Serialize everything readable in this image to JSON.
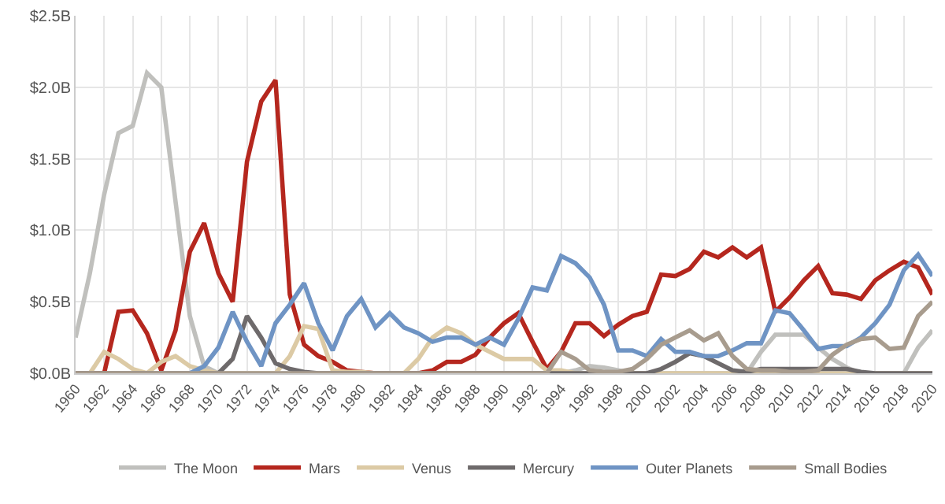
{
  "chart_data": {
    "type": "line",
    "x": [
      1960,
      1961,
      1962,
      1963,
      1964,
      1965,
      1966,
      1967,
      1968,
      1969,
      1970,
      1971,
      1972,
      1973,
      1974,
      1975,
      1976,
      1977,
      1978,
      1979,
      1980,
      1981,
      1982,
      1983,
      1984,
      1985,
      1986,
      1987,
      1988,
      1989,
      1990,
      1991,
      1992,
      1993,
      1994,
      1995,
      1996,
      1997,
      1998,
      1999,
      2000,
      2001,
      2002,
      2003,
      2004,
      2005,
      2006,
      2007,
      2008,
      2009,
      2010,
      2011,
      2012,
      2013,
      2014,
      2015,
      2016,
      2017,
      2018,
      2019,
      2020
    ],
    "series": [
      {
        "name": "The Moon",
        "color": "#c0c0bd",
        "values": [
          0.25,
          0.7,
          1.25,
          1.68,
          1.73,
          2.1,
          2.0,
          1.2,
          0.4,
          0.05,
          0,
          0,
          0,
          0,
          0,
          0,
          0,
          0,
          0,
          0,
          0,
          0,
          0,
          0,
          0,
          0,
          0,
          0,
          0,
          0,
          0,
          0,
          0,
          0,
          0,
          0.02,
          0.05,
          0.04,
          0.02,
          0,
          0,
          0,
          0,
          0,
          0,
          0,
          0,
          0,
          0.15,
          0.27,
          0.27,
          0.27,
          0.18,
          0.1,
          0.04,
          0,
          0,
          0,
          0,
          0.18,
          0.3
        ]
      },
      {
        "name": "Mars",
        "color": "#b5271e",
        "values": [
          0,
          0,
          0,
          0.43,
          0.44,
          0.28,
          0.02,
          0.3,
          0.85,
          1.05,
          0.7,
          0.5,
          1.48,
          1.9,
          2.05,
          0.55,
          0.2,
          0.12,
          0.08,
          0.02,
          0.01,
          0,
          0,
          0,
          0,
          0.02,
          0.08,
          0.08,
          0.13,
          0.25,
          0.35,
          0.42,
          0.22,
          0.03,
          0.15,
          0.35,
          0.35,
          0.26,
          0.34,
          0.4,
          0.43,
          0.69,
          0.68,
          0.73,
          0.85,
          0.81,
          0.88,
          0.81,
          0.88,
          0.43,
          0.53,
          0.65,
          0.75,
          0.56,
          0.55,
          0.52,
          0.65,
          0.72,
          0.78,
          0.74,
          0.55
        ]
      },
      {
        "name": "Venus",
        "color": "#dccaa5",
        "values": [
          0,
          0,
          0.15,
          0.1,
          0.03,
          0,
          0.08,
          0.12,
          0.05,
          0.02,
          0,
          0,
          0,
          0,
          0,
          0.12,
          0.33,
          0.31,
          0.02,
          0.01,
          0.01,
          0,
          0,
          0,
          0.1,
          0.25,
          0.32,
          0.28,
          0.2,
          0.15,
          0.1,
          0.1,
          0.1,
          0.02,
          0.02,
          0,
          0,
          0,
          0,
          0,
          0,
          0,
          0,
          0,
          0,
          0,
          0,
          0,
          0,
          0,
          0,
          0,
          0,
          0,
          0,
          0,
          0,
          0,
          0,
          0,
          0
        ]
      },
      {
        "name": "Mercury",
        "color": "#6e6a6b",
        "values": [
          0,
          0,
          0,
          0,
          0,
          0,
          0,
          0,
          0,
          0,
          0,
          0.1,
          0.4,
          0.25,
          0.07,
          0.03,
          0.01,
          0,
          0,
          0,
          0,
          0,
          0,
          0,
          0,
          0,
          0,
          0,
          0,
          0,
          0,
          0,
          0,
          0,
          0,
          0,
          0,
          0,
          0,
          0,
          0,
          0.03,
          0.08,
          0.14,
          0.12,
          0.07,
          0.02,
          0.01,
          0.03,
          0.03,
          0.03,
          0.03,
          0.03,
          0.03,
          0.03,
          0.01,
          0,
          0,
          0,
          0,
          0
        ]
      },
      {
        "name": "Outer Planets",
        "color": "#6f94c4",
        "values": [
          null,
          null,
          null,
          null,
          null,
          null,
          null,
          null,
          0,
          0.05,
          0.18,
          0.43,
          0.22,
          0.05,
          0.35,
          0.48,
          0.63,
          0.35,
          0.16,
          0.4,
          0.52,
          0.32,
          0.42,
          0.32,
          0.28,
          0.22,
          0.25,
          0.25,
          0.2,
          0.25,
          0.2,
          0.38,
          0.6,
          0.58,
          0.82,
          0.77,
          0.67,
          0.48,
          0.16,
          0.16,
          0.12,
          0.24,
          0.15,
          0.15,
          0.12,
          0.12,
          0.16,
          0.21,
          0.21,
          0.44,
          0.42,
          0.3,
          0.17,
          0.19,
          0.19,
          0.25,
          0.35,
          0.48,
          0.72,
          0.83,
          0.68
        ]
      },
      {
        "name": "Small Bodies",
        "color": "#a89c8e",
        "values": [
          0,
          0,
          0,
          0,
          0,
          0,
          0,
          0,
          0,
          0,
          0,
          0,
          0,
          0,
          0,
          0,
          0,
          0,
          0,
          0,
          0,
          0,
          0,
          0,
          0,
          0,
          0,
          0,
          0,
          0,
          0,
          0,
          0,
          0,
          0.15,
          0.1,
          0.02,
          0.01,
          0.01,
          0.03,
          0.1,
          0.2,
          0.25,
          0.3,
          0.23,
          0.28,
          0.12,
          0.03,
          0.02,
          0.02,
          0.01,
          0.01,
          0.02,
          0.13,
          0.2,
          0.24,
          0.25,
          0.17,
          0.18,
          0.4,
          0.5
        ]
      }
    ],
    "xlim": [
      1960,
      2020
    ],
    "xticks": [
      1960,
      1962,
      1964,
      1966,
      1968,
      1970,
      1972,
      1974,
      1976,
      1978,
      1980,
      1982,
      1984,
      1986,
      1988,
      1990,
      1992,
      1994,
      1996,
      1998,
      2000,
      2002,
      2004,
      2006,
      2008,
      2010,
      2012,
      2014,
      2016,
      2018,
      2020
    ],
    "ylim": [
      0,
      2.5
    ],
    "yticks": [
      {
        "value": 0,
        "label": "$0.0B"
      },
      {
        "value": 0.5,
        "label": "$0.5B"
      },
      {
        "value": 1,
        "label": "$1.0B"
      },
      {
        "value": 1.5,
        "label": "$1.5B"
      },
      {
        "value": 2,
        "label": "$2.0B"
      },
      {
        "value": 2.5,
        "label": "$2.5B"
      }
    ],
    "grid": true,
    "legend": "bottom",
    "marker": "none",
    "line_style": "solid"
  }
}
